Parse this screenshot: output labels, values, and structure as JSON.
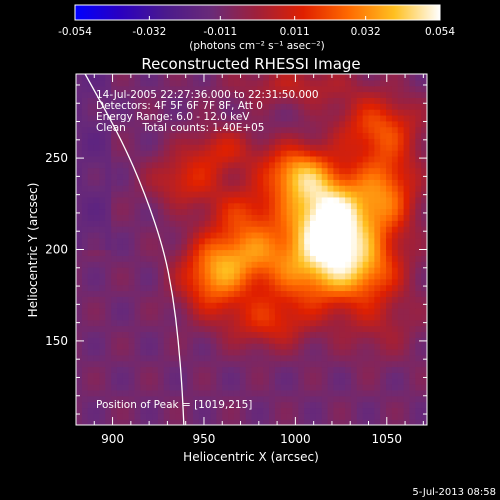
{
  "chart_data": {
    "type": "heatmap",
    "title": "Reconstructed RHESSI Image",
    "xlabel": "Heliocentric X (arcsec)",
    "ylabel": "Heliocentric Y (arcsec)",
    "xlim": [
      880,
      1072
    ],
    "ylim": [
      104,
      296
    ],
    "x_ticks": [
      900,
      950,
      1000,
      1050
    ],
    "y_ticks": [
      150,
      200,
      250
    ],
    "colorbar": {
      "min": -0.054,
      "max": 0.054,
      "ticks": [
        "-0.054",
        "-0.032",
        "-0.011",
        "0.011",
        "0.032",
        "0.054"
      ],
      "units": "(photons cm⁻² s⁻¹ asec⁻²)",
      "colors": [
        "#0000ff",
        "#2a00c0",
        "#4b1a8c",
        "#6a2a78",
        "#a0203a",
        "#e02000",
        "#ff6a00",
        "#ffc020",
        "#ffffff"
      ]
    },
    "annotations": [
      "14-Jul-2005 22:27:36.000 to 22:31:50.000",
      "Detectors: 4F 5F 6F 7F 8F, Att 0",
      "Energy Range: 6.0 - 12.0 keV",
      "Clean     Total counts: 1.40E+05"
    ],
    "peak_label": "Position of Peak = [1019,215]",
    "peak": [
      1019,
      215
    ],
    "background_value": -0.011,
    "sources": [
      {
        "x": 1019,
        "y": 215,
        "sigma_x": 16,
        "sigma_y": 18,
        "amp": 0.072
      },
      {
        "x": 1000,
        "y": 242,
        "sigma_x": 13,
        "sigma_y": 11,
        "amp": 0.04
      },
      {
        "x": 1050,
        "y": 232,
        "sigma_x": 12,
        "sigma_y": 18,
        "amp": 0.034
      },
      {
        "x": 1045,
        "y": 268,
        "sigma_x": 16,
        "sigma_y": 12,
        "amp": 0.028
      },
      {
        "x": 960,
        "y": 255,
        "sigma_x": 14,
        "sigma_y": 9,
        "amp": 0.02
      },
      {
        "x": 940,
        "y": 238,
        "sigma_x": 14,
        "sigma_y": 10,
        "amp": 0.022
      },
      {
        "x": 972,
        "y": 222,
        "sigma_x": 14,
        "sigma_y": 10,
        "amp": 0.02
      },
      {
        "x": 1010,
        "y": 185,
        "sigma_x": 22,
        "sigma_y": 14,
        "amp": 0.03
      },
      {
        "x": 1040,
        "y": 190,
        "sigma_x": 14,
        "sigma_y": 12,
        "amp": 0.024
      },
      {
        "x": 955,
        "y": 185,
        "sigma_x": 13,
        "sigma_y": 14,
        "amp": 0.038
      },
      {
        "x": 975,
        "y": 200,
        "sigma_x": 16,
        "sigma_y": 12,
        "amp": 0.03
      },
      {
        "x": 985,
        "y": 160,
        "sigma_x": 16,
        "sigma_y": 10,
        "amp": 0.022
      },
      {
        "x": 1045,
        "y": 160,
        "sigma_x": 16,
        "sigma_y": 14,
        "amp": 0.012
      },
      {
        "x": 1000,
        "y": 290,
        "sigma_x": 24,
        "sigma_y": 8,
        "amp": 0.016
      }
    ],
    "limb_curve": [
      [
        885,
        296
      ],
      [
        905,
        260
      ],
      [
        918,
        230
      ],
      [
        928,
        200
      ],
      [
        933,
        175
      ],
      [
        936,
        150
      ],
      [
        938,
        125
      ],
      [
        939,
        104
      ]
    ],
    "timestamp": "5-Jul-2013 08:58"
  }
}
